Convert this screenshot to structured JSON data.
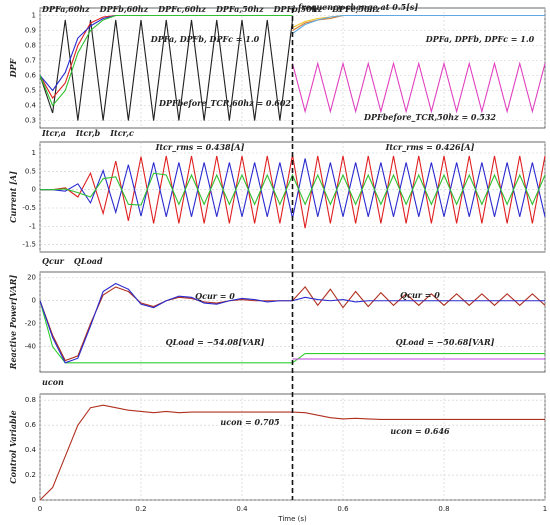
{
  "chart_data": [
    {
      "type": "line",
      "ylabel": "DPF",
      "annotations": [
        "frequency change at 0.5[s]",
        "DPFa, DPFb, DPFc = 1.0",
        "DPFa, DPFb, DPFc = 1.0",
        "DPFbefore_TCR,60hz = 0.602",
        "DPFbefore_TCR,50hz = 0.532"
      ],
      "vline_x": 0.5,
      "grid": true,
      "xlim": [
        0,
        1
      ],
      "xticks": [
        0,
        0.2,
        0.4,
        0.6,
        0.8,
        1
      ],
      "ylim": [
        0.25,
        1.05
      ],
      "yticks": [
        0.3,
        0.4,
        0.5,
        0.6,
        0.7,
        0.8,
        0.9,
        1
      ],
      "x": [
        0,
        0.025,
        0.05,
        0.075,
        0.1,
        0.125,
        0.15,
        0.175,
        0.2,
        0.225,
        0.25,
        0.275,
        0.3,
        0.325,
        0.35,
        0.375,
        0.4,
        0.425,
        0.45,
        0.475,
        0.5,
        0.525,
        0.55,
        0.575,
        0.6,
        0.625,
        0.65,
        0.675,
        0.7,
        0.725,
        0.75,
        0.775,
        0.8,
        0.825,
        0.85,
        0.875,
        0.9,
        0.925,
        0.95,
        0.975,
        1
      ],
      "series": [
        {
          "color": "#222222",
          "values": [
            0.6,
            0.35,
            0.97,
            0.3,
            0.97,
            0.3,
            0.97,
            0.3,
            0.97,
            0.3,
            0.97,
            0.3,
            0.97,
            0.3,
            0.97,
            0.3,
            0.97,
            0.3,
            0.97,
            0.3,
            0.97,
            null,
            null,
            null,
            null,
            null,
            null,
            null,
            null,
            null,
            null,
            null,
            null,
            null,
            null,
            null,
            null,
            null,
            null,
            null,
            null
          ]
        },
        {
          "color": "#e040c0",
          "values": [
            null,
            null,
            null,
            null,
            null,
            null,
            null,
            null,
            null,
            null,
            null,
            null,
            null,
            null,
            null,
            null,
            null,
            null,
            null,
            null,
            0.68,
            0.36,
            0.68,
            0.36,
            0.68,
            0.36,
            0.68,
            0.36,
            0.68,
            0.36,
            0.68,
            0.36,
            0.68,
            0.36,
            0.68,
            0.36,
            0.68,
            0.36,
            0.68,
            0.36,
            0.68
          ]
        },
        {
          "name": "DPFa,60hz",
          "color": "#e02020",
          "values": [
            0.6,
            0.45,
            0.55,
            0.8,
            0.95,
            0.99,
            1,
            1,
            1,
            1,
            1,
            1,
            1,
            1,
            1,
            1,
            1,
            1,
            1,
            1,
            1,
            null,
            null,
            null,
            null,
            null,
            null,
            null,
            null,
            null,
            null,
            null,
            null,
            null,
            null,
            null,
            null,
            null,
            null,
            null,
            null
          ]
        },
        {
          "name": "DPFb,60hz",
          "color": "#2a2ad0",
          "values": [
            0.6,
            0.5,
            0.62,
            0.85,
            0.93,
            0.98,
            1,
            1,
            1,
            1,
            1,
            1,
            1,
            1,
            1,
            1,
            1,
            1,
            1,
            1,
            1,
            null,
            null,
            null,
            null,
            null,
            null,
            null,
            null,
            null,
            null,
            null,
            null,
            null,
            null,
            null,
            null,
            null,
            null,
            null,
            null
          ]
        },
        {
          "name": "DPFc,60hz",
          "color": "#30c030",
          "values": [
            0.6,
            0.4,
            0.5,
            0.75,
            0.9,
            0.97,
            1,
            1,
            1,
            1,
            1,
            1,
            1,
            1,
            1,
            1,
            1,
            1,
            1,
            1,
            1,
            null,
            null,
            null,
            null,
            null,
            null,
            null,
            null,
            null,
            null,
            null,
            null,
            null,
            null,
            null,
            null,
            null,
            null,
            null,
            null
          ]
        },
        {
          "name": "DPFa,50hz",
          "color": "#f0c020",
          "values": [
            null,
            null,
            null,
            null,
            null,
            null,
            null,
            null,
            null,
            null,
            null,
            null,
            null,
            null,
            null,
            null,
            null,
            null,
            null,
            null,
            0.92,
            0.96,
            0.98,
            0.99,
            1,
            1,
            1,
            1,
            1,
            1,
            1,
            1,
            1,
            1,
            1,
            1,
            1,
            1,
            1,
            1,
            1
          ]
        },
        {
          "name": "DPFb,50hz",
          "color": "#d07a30",
          "values": [
            null,
            null,
            null,
            null,
            null,
            null,
            null,
            null,
            null,
            null,
            null,
            null,
            null,
            null,
            null,
            null,
            null,
            null,
            null,
            null,
            0.9,
            0.95,
            0.97,
            0.98,
            1,
            1,
            1,
            1,
            1,
            1,
            1,
            1,
            1,
            1,
            1,
            1,
            1,
            1,
            1,
            1,
            1
          ]
        },
        {
          "name": "DPFc,50hz",
          "color": "#60a8e0",
          "values": [
            null,
            null,
            null,
            null,
            null,
            null,
            null,
            null,
            null,
            null,
            null,
            null,
            null,
            null,
            null,
            null,
            null,
            null,
            null,
            null,
            0.88,
            0.94,
            0.97,
            0.99,
            1,
            1,
            1,
            1,
            1,
            1,
            1,
            1,
            1,
            1,
            1,
            1,
            1,
            1,
            1,
            1,
            1
          ]
        }
      ]
    },
    {
      "type": "line",
      "ylabel": "Current [A]",
      "annotations": [
        "Itcr_rms = 0.438[A]",
        "Itcr_rms = 0.426[A]"
      ],
      "grid": true,
      "xlim": [
        0,
        1
      ],
      "xticks": [
        0,
        0.2,
        0.4,
        0.6,
        0.8,
        1
      ],
      "ylim": [
        -1.7,
        1.3
      ],
      "yticks": [
        -1.5,
        -1,
        -0.5,
        0,
        0.5,
        1
      ],
      "x": [
        0,
        0.025,
        0.05,
        0.075,
        0.1,
        0.125,
        0.15,
        0.175,
        0.2,
        0.225,
        0.25,
        0.275,
        0.3,
        0.325,
        0.35,
        0.375,
        0.4,
        0.425,
        0.45,
        0.475,
        0.5,
        0.525,
        0.55,
        0.575,
        0.6,
        0.625,
        0.65,
        0.675,
        0.7,
        0.725,
        0.75,
        0.775,
        0.8,
        0.825,
        0.85,
        0.875,
        0.9,
        0.925,
        0.95,
        0.975,
        1
      ],
      "series": [
        {
          "name": "Itcr,a",
          "color": "#e02020",
          "values": [
            0,
            0,
            0.05,
            -0.2,
            0.45,
            -0.65,
            0.78,
            -0.85,
            0.9,
            -0.92,
            0.92,
            -0.92,
            0.92,
            -0.92,
            0.92,
            -0.92,
            0.92,
            -0.92,
            0.92,
            -0.92,
            0.95,
            -1.05,
            0.92,
            -0.92,
            0.92,
            -0.92,
            0.92,
            -0.92,
            0.92,
            -0.92,
            0.92,
            -0.92,
            0.92,
            -0.92,
            0.92,
            -0.92,
            0.92,
            -0.92,
            0.92,
            -0.92,
            0.92
          ]
        },
        {
          "name": "Itcr,b",
          "color": "#2a2ad0",
          "values": [
            0,
            0,
            -0.04,
            0.16,
            -0.36,
            0.52,
            -0.62,
            0.68,
            -0.72,
            0.74,
            -0.74,
            0.74,
            -0.74,
            0.74,
            -0.74,
            0.74,
            -0.74,
            0.74,
            -0.74,
            0.74,
            -0.78,
            0.85,
            -0.74,
            0.74,
            -0.74,
            0.74,
            -0.74,
            0.74,
            -0.74,
            0.74,
            -0.74,
            0.74,
            -0.74,
            0.74,
            -0.74,
            0.74,
            -0.74,
            0.74,
            -0.74,
            0.74,
            -0.74
          ]
        },
        {
          "name": "Itcr,c",
          "color": "#30c030",
          "values": [
            0,
            0,
            0.02,
            -0.08,
            -0.2,
            0.3,
            0.35,
            -0.4,
            -0.42,
            0.45,
            0.4,
            -0.4,
            0.4,
            -0.4,
            0.4,
            -0.4,
            0.4,
            -0.4,
            0.4,
            -0.4,
            0.4,
            -0.4,
            0.4,
            -0.4,
            0.4,
            -0.4,
            0.4,
            -0.4,
            0.4,
            -0.4,
            0.4,
            -0.4,
            0.4,
            -0.4,
            0.4,
            -0.4,
            0.4,
            -0.4,
            0.4,
            -0.4,
            0.4
          ]
        }
      ]
    },
    {
      "type": "line",
      "ylabel": "Reactive Power[VAR]",
      "annotations": [
        "Qcur = 0",
        "Qcur = 0",
        "QLoad = −54.08[VAR]",
        "QLoad = −50.68[VAR]"
      ],
      "grid": true,
      "xlim": [
        0,
        1
      ],
      "xticks": [
        0,
        0.2,
        0.4,
        0.6,
        0.8,
        1
      ],
      "ylim": [
        -62,
        25
      ],
      "yticks": [
        -40,
        -20,
        0,
        20
      ],
      "x": [
        0,
        0.025,
        0.05,
        0.075,
        0.1,
        0.125,
        0.15,
        0.175,
        0.2,
        0.225,
        0.25,
        0.275,
        0.3,
        0.325,
        0.35,
        0.375,
        0.4,
        0.425,
        0.45,
        0.475,
        0.5,
        0.525,
        0.55,
        0.575,
        0.6,
        0.625,
        0.65,
        0.675,
        0.7,
        0.725,
        0.75,
        0.775,
        0.8,
        0.825,
        0.85,
        0.875,
        0.9,
        0.925,
        0.95,
        0.975,
        1
      ],
      "series": [
        {
          "color": "#30d030",
          "values": [
            0,
            -40,
            -54,
            -54,
            -54,
            -54,
            -54,
            -54,
            -54,
            -54,
            -54,
            -54,
            -54,
            -54,
            -54,
            -54,
            -54,
            -54,
            -54,
            -54,
            -54,
            -46,
            -46,
            -46,
            -46,
            -46,
            -46,
            -46,
            -46,
            -46,
            -46,
            -46,
            -46,
            -46,
            -46,
            -46,
            -46,
            -46,
            -46,
            -46,
            -46
          ]
        },
        {
          "color": "#c040e0",
          "values": [
            null,
            null,
            null,
            null,
            null,
            null,
            null,
            null,
            null,
            null,
            null,
            null,
            null,
            null,
            null,
            null,
            null,
            null,
            null,
            null,
            -50.68,
            -50.68,
            -50.68,
            -50.68,
            -50.68,
            -50.68,
            -50.68,
            -50.68,
            -50.68,
            -50.68,
            -50.68,
            -50.68,
            -50.68,
            -50.68,
            -50.68,
            -50.68,
            -50.68,
            -50.68,
            -50.68,
            -50.68,
            -50.68
          ]
        },
        {
          "name": "Qcur",
          "color": "#b03020",
          "values": [
            0,
            -30,
            -52,
            -48,
            -20,
            5,
            12,
            8,
            -2,
            -5,
            0,
            3,
            2,
            -1,
            -2,
            0,
            1,
            0,
            0,
            0,
            0,
            12,
            -4,
            10,
            -6,
            8,
            -5,
            7,
            -4,
            6,
            -4,
            6,
            -4,
            6,
            -4,
            6,
            -4,
            6,
            -4,
            6,
            -4
          ]
        },
        {
          "name": "QLoad",
          "color": "#2a2ad0",
          "values": [
            0,
            -32,
            -54,
            -50,
            -22,
            8,
            15,
            10,
            -3,
            -6,
            0,
            4,
            3,
            -2,
            -3,
            0,
            2,
            1,
            -1,
            0,
            0,
            3,
            1,
            0,
            1,
            -1,
            0,
            0,
            0,
            0,
            0,
            0,
            0,
            0,
            0,
            0,
            0,
            0,
            0,
            0,
            0
          ]
        }
      ]
    },
    {
      "type": "line",
      "ylabel": "Control Variable",
      "annotations": [
        "ucon = 0.705",
        "ucon = 0.646"
      ],
      "xlabel": "Time (s)",
      "grid": true,
      "xlim": [
        0,
        1
      ],
      "xticks": [
        0,
        0.2,
        0.4,
        0.6,
        0.8,
        1
      ],
      "ylim": [
        0,
        0.85
      ],
      "yticks": [
        0,
        0.2,
        0.4,
        0.6,
        0.8
      ],
      "x": [
        0,
        0.025,
        0.05,
        0.075,
        0.1,
        0.125,
        0.15,
        0.175,
        0.2,
        0.225,
        0.25,
        0.275,
        0.3,
        0.325,
        0.35,
        0.375,
        0.4,
        0.425,
        0.45,
        0.475,
        0.5,
        0.525,
        0.55,
        0.575,
        0.6,
        0.625,
        0.65,
        0.675,
        0.7,
        0.725,
        0.75,
        0.775,
        0.8,
        0.825,
        0.85,
        0.875,
        0.9,
        0.925,
        0.95,
        0.975,
        1
      ],
      "series": [
        {
          "name": "ucon",
          "color": "#b03020",
          "values": [
            0,
            0.1,
            0.35,
            0.6,
            0.74,
            0.76,
            0.74,
            0.72,
            0.71,
            0.7,
            0.71,
            0.7,
            0.705,
            0.705,
            0.705,
            0.705,
            0.705,
            0.705,
            0.705,
            0.705,
            0.705,
            0.7,
            0.68,
            0.66,
            0.65,
            0.655,
            0.65,
            0.646,
            0.646,
            0.646,
            0.646,
            0.646,
            0.646,
            0.646,
            0.646,
            0.646,
            0.646,
            0.646,
            0.646,
            0.646,
            0.646
          ]
        }
      ]
    }
  ]
}
